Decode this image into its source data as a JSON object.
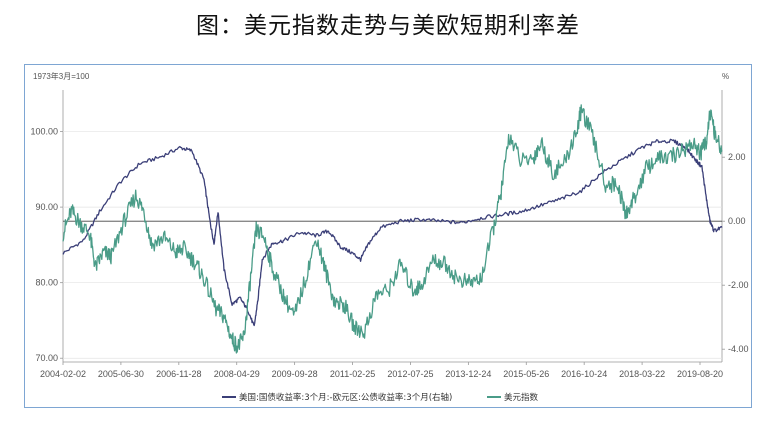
{
  "title": "图：美元指数走势与美欧短期利率差",
  "chart_data": {
    "type": "line",
    "left_unit": "1973年3月=100",
    "right_unit": "%",
    "x_ticks": [
      "2004-02-02",
      "2005-06-30",
      "2006-11-28",
      "2008-04-29",
      "2009-09-28",
      "2011-02-25",
      "2012-07-25",
      "2013-12-24",
      "2015-05-26",
      "2016-10-24",
      "2018-03-22",
      "2019-08-20"
    ],
    "x_range": [
      2004.09,
      2020.5
    ],
    "y_left_ticks": [
      "70.00",
      "80.00",
      "90.00",
      "100.00"
    ],
    "y_left_range": [
      69.5,
      105.5
    ],
    "y_right_ticks": [
      "-4.00",
      "-2.00",
      "0.00",
      "2.00"
    ],
    "y_right_range": [
      -4.4,
      4.1
    ],
    "grid": true,
    "legend_position": "bottom",
    "series": [
      {
        "name": "美国:国债收益率:3个月:-欧元区:公债收益率:3个月(右轴)",
        "axis": "right",
        "color": "#3b3f78",
        "points": [
          [
            2004.09,
            -1.0
          ],
          [
            2004.6,
            -0.6
          ],
          [
            2005.0,
            0.3
          ],
          [
            2005.5,
            1.2
          ],
          [
            2006.0,
            1.8
          ],
          [
            2006.5,
            2.0
          ],
          [
            2007.0,
            2.3
          ],
          [
            2007.3,
            2.2
          ],
          [
            2007.6,
            1.3
          ],
          [
            2007.75,
            0.0
          ],
          [
            2007.85,
            -0.7
          ],
          [
            2007.95,
            0.3
          ],
          [
            2008.1,
            -1.5
          ],
          [
            2008.3,
            -2.6
          ],
          [
            2008.5,
            -2.4
          ],
          [
            2008.7,
            -2.8
          ],
          [
            2008.85,
            -3.3
          ],
          [
            2008.95,
            -2.4
          ],
          [
            2009.05,
            -1.2
          ],
          [
            2009.3,
            -0.7
          ],
          [
            2009.6,
            -0.6
          ],
          [
            2010.0,
            -0.35
          ],
          [
            2010.4,
            -0.45
          ],
          [
            2010.7,
            -0.3
          ],
          [
            2011.0,
            -0.8
          ],
          [
            2011.3,
            -1.0
          ],
          [
            2011.5,
            -1.2
          ],
          [
            2011.7,
            -0.7
          ],
          [
            2012.0,
            -0.2
          ],
          [
            2012.5,
            0.0
          ],
          [
            2013.0,
            0.05
          ],
          [
            2013.5,
            0.0
          ],
          [
            2014.0,
            -0.05
          ],
          [
            2014.5,
            0.1
          ],
          [
            2015.0,
            0.2
          ],
          [
            2015.5,
            0.3
          ],
          [
            2016.0,
            0.5
          ],
          [
            2016.5,
            0.7
          ],
          [
            2017.0,
            0.95
          ],
          [
            2017.5,
            1.5
          ],
          [
            2018.0,
            1.9
          ],
          [
            2018.5,
            2.3
          ],
          [
            2018.9,
            2.5
          ],
          [
            2019.3,
            2.5
          ],
          [
            2019.6,
            2.3
          ],
          [
            2019.85,
            1.9
          ],
          [
            2020.0,
            1.7
          ],
          [
            2020.1,
            0.8
          ],
          [
            2020.2,
            0.0
          ],
          [
            2020.3,
            -0.3
          ],
          [
            2020.5,
            -0.2
          ]
        ]
      },
      {
        "name": "美元指数",
        "axis": "left",
        "color": "#4a9c88",
        "points": [
          [
            2004.09,
            86.5
          ],
          [
            2004.3,
            89.5
          ],
          [
            2004.5,
            88.0
          ],
          [
            2004.75,
            86.5
          ],
          [
            2004.9,
            82.0
          ],
          [
            2005.1,
            84.0
          ],
          [
            2005.3,
            83.5
          ],
          [
            2005.6,
            88.0
          ],
          [
            2005.9,
            91.5
          ],
          [
            2006.1,
            89.5
          ],
          [
            2006.3,
            85.0
          ],
          [
            2006.6,
            86.0
          ],
          [
            2006.9,
            84.0
          ],
          [
            2007.1,
            84.5
          ],
          [
            2007.4,
            82.5
          ],
          [
            2007.6,
            80.5
          ],
          [
            2007.9,
            76.5
          ],
          [
            2008.1,
            75.5
          ],
          [
            2008.3,
            72.5
          ],
          [
            2008.45,
            71.5
          ],
          [
            2008.6,
            73.0
          ],
          [
            2008.75,
            80.0
          ],
          [
            2008.9,
            87.0
          ],
          [
            2009.1,
            86.0
          ],
          [
            2009.3,
            82.0
          ],
          [
            2009.6,
            78.0
          ],
          [
            2009.85,
            75.5
          ],
          [
            2010.1,
            80.0
          ],
          [
            2010.4,
            86.0
          ],
          [
            2010.6,
            82.0
          ],
          [
            2010.85,
            77.5
          ],
          [
            2011.1,
            77.0
          ],
          [
            2011.35,
            74.0
          ],
          [
            2011.6,
            73.5
          ],
          [
            2011.9,
            78.5
          ],
          [
            2012.2,
            79.0
          ],
          [
            2012.5,
            82.5
          ],
          [
            2012.8,
            79.0
          ],
          [
            2013.0,
            79.5
          ],
          [
            2013.3,
            83.0
          ],
          [
            2013.6,
            82.5
          ],
          [
            2013.9,
            80.5
          ],
          [
            2014.2,
            80.0
          ],
          [
            2014.5,
            80.5
          ],
          [
            2014.8,
            87.0
          ],
          [
            2015.0,
            92.0
          ],
          [
            2015.2,
            99.5
          ],
          [
            2015.5,
            96.0
          ],
          [
            2015.8,
            96.5
          ],
          [
            2016.0,
            98.5
          ],
          [
            2016.3,
            94.5
          ],
          [
            2016.6,
            96.0
          ],
          [
            2016.9,
            100.5
          ],
          [
            2017.0,
            103.0
          ],
          [
            2017.3,
            99.0
          ],
          [
            2017.6,
            93.0
          ],
          [
            2017.9,
            93.0
          ],
          [
            2018.1,
            89.0
          ],
          [
            2018.3,
            91.0
          ],
          [
            2018.6,
            95.0
          ],
          [
            2018.9,
            96.5
          ],
          [
            2019.2,
            96.5
          ],
          [
            2019.5,
            97.5
          ],
          [
            2019.8,
            98.5
          ],
          [
            2019.95,
            97.0
          ],
          [
            2020.1,
            98.5
          ],
          [
            2020.2,
            102.5
          ],
          [
            2020.35,
            99.0
          ],
          [
            2020.5,
            97.5
          ]
        ]
      }
    ]
  }
}
